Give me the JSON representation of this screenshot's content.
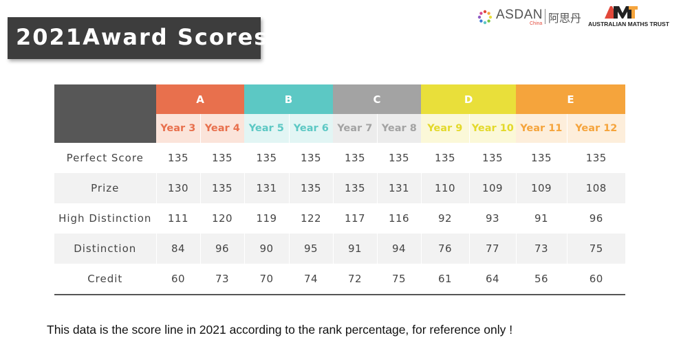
{
  "title": "2021Award Scores",
  "logos": {
    "asdan": "ASDAN",
    "asdan_sub": "China",
    "asdan_cn": "阿思丹",
    "amt": "AMT",
    "amt_sub": "AUSTRALIAN MATHS TRUST"
  },
  "colors": {
    "A": {
      "header": "#e8704d",
      "sub_bg": "#fbe4da",
      "text": "#e8704d"
    },
    "B": {
      "header": "#5cc8c4",
      "sub_bg": "#e2f5f4",
      "text": "#5cc8c4"
    },
    "C": {
      "header": "#a3a3a3",
      "sub_bg": "#ececec",
      "text": "#a3a3a3"
    },
    "D": {
      "header": "#e9df3a",
      "sub_bg": "#fbf8d8",
      "text": "#e3d92a"
    },
    "E": {
      "header": "#f5a43c",
      "sub_bg": "#fdeedb",
      "text": "#f5a43c"
    }
  },
  "groups": [
    {
      "label": "A",
      "years": [
        "Year 3",
        "Year 4"
      ]
    },
    {
      "label": "B",
      "years": [
        "Year 5",
        "Year 6"
      ]
    },
    {
      "label": "C",
      "years": [
        "Year 7",
        "Year 8"
      ]
    },
    {
      "label": "D",
      "years": [
        "Year 9",
        "Year 10"
      ]
    },
    {
      "label": "E",
      "years": [
        "Year 11",
        "Year 12"
      ]
    }
  ],
  "rows": [
    {
      "label": "Perfect Score",
      "values": [
        "135",
        "135",
        "135",
        "135",
        "135",
        "135",
        "135",
        "135",
        "135",
        "135"
      ]
    },
    {
      "label": "Prize",
      "values": [
        "130",
        "135",
        "131",
        "135",
        "135",
        "131",
        "110",
        "109",
        "109",
        "108"
      ]
    },
    {
      "label": "High Distinction",
      "values": [
        "111",
        "120",
        "119",
        "122",
        "117",
        "116",
        "92",
        "93",
        "91",
        "96"
      ]
    },
    {
      "label": "Distinction",
      "values": [
        "84",
        "96",
        "90",
        "95",
        "91",
        "94",
        "76",
        "77",
        "73",
        "75"
      ]
    },
    {
      "label": "Credit",
      "values": [
        "60",
        "73",
        "70",
        "74",
        "72",
        "75",
        "61",
        "64",
        "56",
        "60"
      ]
    }
  ],
  "footnote": "This data is the score line in 2021 according to the rank percentage, for reference only !"
}
